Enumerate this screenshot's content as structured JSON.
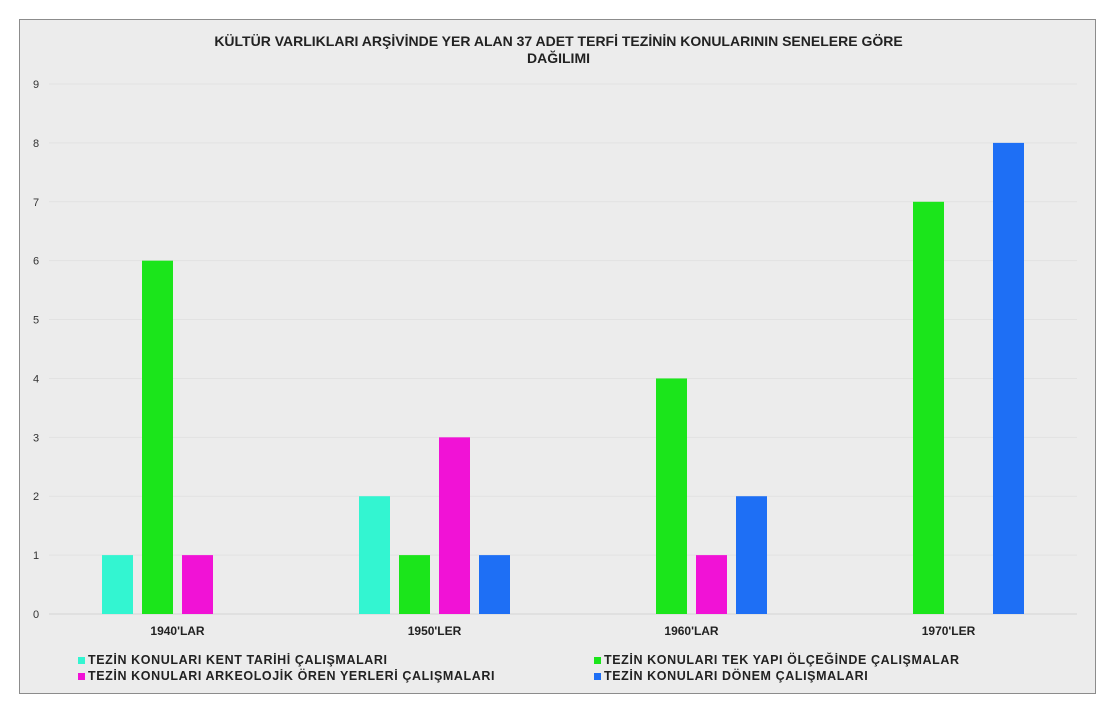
{
  "chart_data": {
    "type": "bar",
    "title": "KÜLTÜR VARLIKLARI ARŞİVİNDE YER ALAN 37 ADET TERFİ TEZİNİN KONULARININ SENELERE GÖRE DAĞILIMI",
    "title_lines": [
      "KÜLTÜR VARLIKLARI ARŞİVİNDE YER ALAN 37 ADET TERFİ TEZİNİN KONULARININ SENELERE GÖRE",
      "DAĞILIMI"
    ],
    "xlabel": "",
    "ylabel": "",
    "categories": [
      "1940'LAR",
      "1950'LER",
      "1960'LAR",
      "1970'LER"
    ],
    "ylim": [
      0,
      9
    ],
    "yticks": [
      "0",
      "1",
      "2",
      "3",
      "4",
      "5",
      "6",
      "7",
      "8",
      "9"
    ],
    "grid": true,
    "legend_position": "bottom",
    "series": [
      {
        "name": "TEZİN KONULARI KENT TARİHİ ÇALIŞMALARI",
        "color": "#33f5d1",
        "values": [
          1,
          2,
          0,
          0
        ]
      },
      {
        "name": "TEZİN KONULARI TEK YAPI ÖLÇEĞİNDE ÇALIŞMALAR",
        "color": "#1be51b",
        "values": [
          6,
          1,
          4,
          7
        ]
      },
      {
        "name": "TEZİN KONULARI ARKEOLOJİK ÖREN YERLERİ ÇALIŞMALARI",
        "color": "#f112d6",
        "values": [
          1,
          3,
          1,
          0
        ]
      },
      {
        "name": "TEZİN KONULARI DÖNEM ÇALIŞMALARI",
        "color": "#1e6ff5",
        "values": [
          0,
          1,
          2,
          8
        ]
      }
    ]
  }
}
